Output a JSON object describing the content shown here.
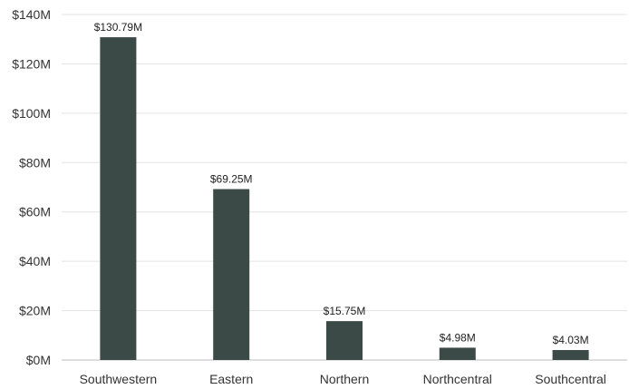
{
  "chart_data": {
    "type": "bar",
    "categories": [
      "Southwestern",
      "Eastern",
      "Northern",
      "Northcentral",
      "Southcentral"
    ],
    "values": [
      130.79,
      69.25,
      15.75,
      4.98,
      4.03
    ],
    "data_labels": [
      "$130.79M",
      "$69.25M",
      "$15.75M",
      "$4.98M",
      "$4.03M"
    ],
    "y_ticks": [
      0,
      20,
      40,
      60,
      80,
      100,
      120,
      140
    ],
    "y_tick_labels": [
      "$0M",
      "$20M",
      "$40M",
      "$60M",
      "$80M",
      "$100M",
      "$120M",
      "$140M"
    ],
    "ylim": [
      0,
      140
    ],
    "grid": true,
    "legend": "none",
    "bar_color": "#3b4a46",
    "title": "",
    "xlabel": "",
    "ylabel": ""
  }
}
